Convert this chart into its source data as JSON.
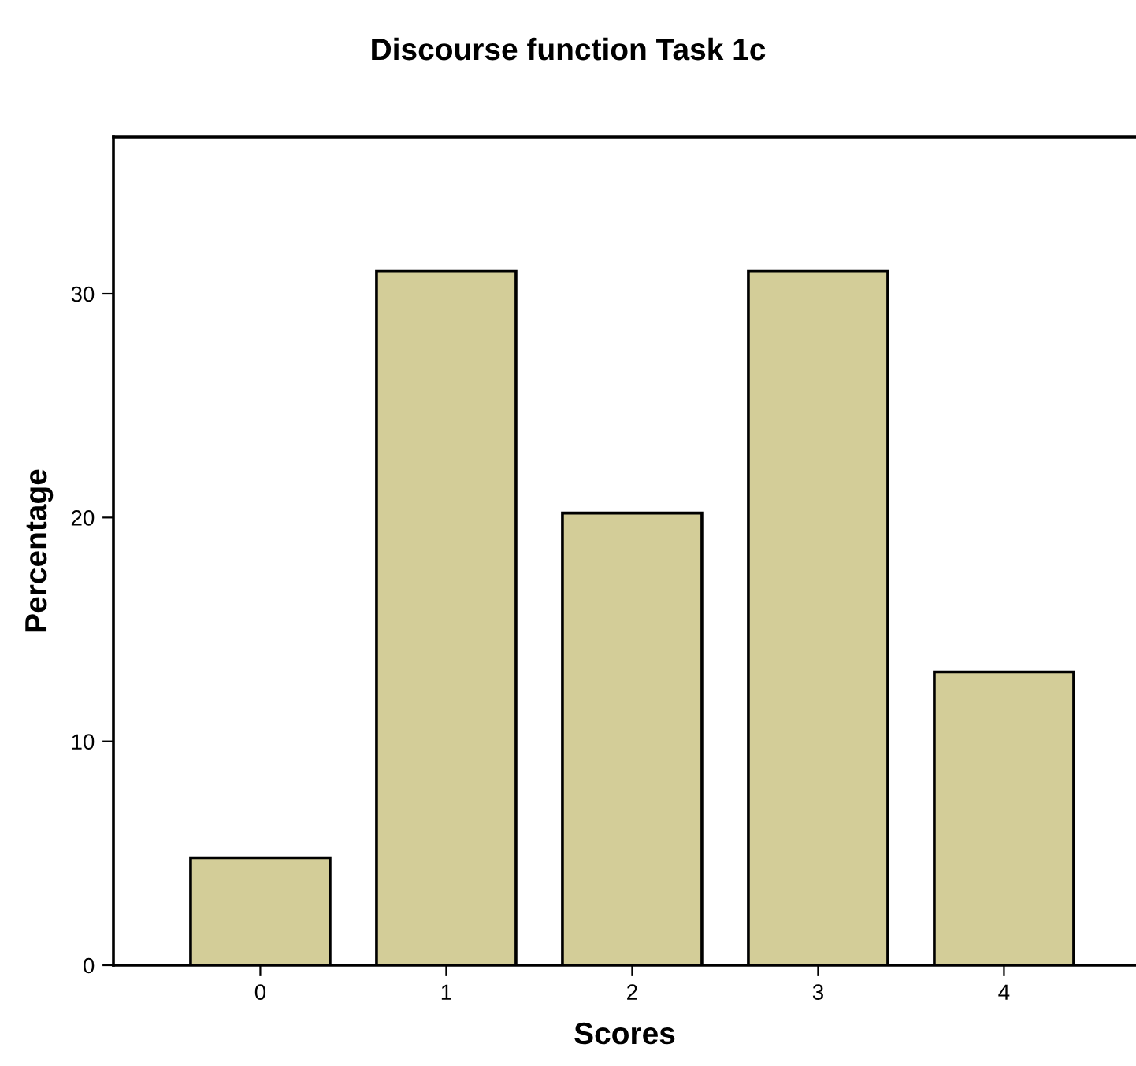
{
  "chart_data": {
    "type": "bar",
    "title": "Discourse function Task 1c",
    "xlabel": "Scores",
    "ylabel": "Percentage",
    "categories": [
      "0",
      "1",
      "2",
      "3",
      "4"
    ],
    "values": [
      4.8,
      31.0,
      20.2,
      31.0,
      13.1
    ],
    "color": "#d3cd98",
    "ylim": [
      0,
      37
    ],
    "yticks": [
      0,
      10,
      20,
      30
    ],
    "grid": false,
    "legend": false
  }
}
